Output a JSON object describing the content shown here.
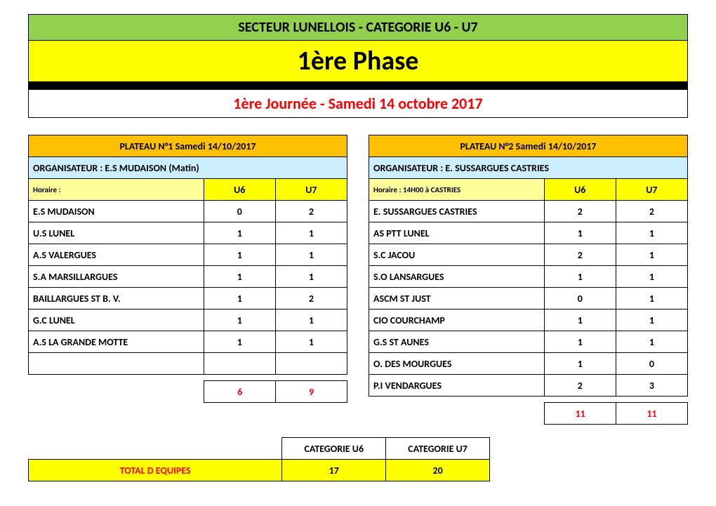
{
  "header": {
    "sector": "SECTEUR LUNELLOIS - CATEGORIE U6 - U7",
    "phase": "1ère Phase",
    "journee": "1ère  Journée - Samedi 14 octobre 2017"
  },
  "colors": {
    "green": "#92d050",
    "yellow": "#ffff00",
    "yellow_soft": "#ffff99",
    "orange": "#ffc000",
    "lightblue": "#cceeff",
    "red": "#ff0000",
    "black": "#000000",
    "white": "#ffffff"
  },
  "plateau1": {
    "title": "PLATEAU N°1  Samedi 14/10/2017",
    "organisateur": "ORGANISATEUR  : E.S MUDAISON (Matin)",
    "horaire": "Horaire :",
    "cols": {
      "u6": "U6",
      "u7": "U7"
    },
    "rows": [
      {
        "team": "E.S MUDAISON",
        "u6": "0",
        "u7": "2"
      },
      {
        "team": "U.S LUNEL",
        "u6": "1",
        "u7": "1"
      },
      {
        "team": "A.S VALERGUES",
        "u6": "1",
        "u7": "1"
      },
      {
        "team": "S.A MARSILLARGUES",
        "u6": "1",
        "u7": "1"
      },
      {
        "team": "BAILLARGUES ST B. V.",
        "u6": "1",
        "u7": "2"
      },
      {
        "team": "G.C LUNEL",
        "u6": "1",
        "u7": "1"
      },
      {
        "team": "A.S LA GRANDE MOTTE",
        "u6": "1",
        "u7": "1"
      },
      {
        "team": "",
        "u6": "",
        "u7": ""
      }
    ],
    "subtotal": {
      "u6": "6",
      "u7": "9"
    }
  },
  "plateau2": {
    "title": "PLATEAU N°2  Samedi 14/10/2017",
    "organisateur": "ORGANISATEUR  : E. SUSSARGUES CASTRIES",
    "horaire": "Horaire : 14H00 à CASTRIES",
    "cols": {
      "u6": "U6",
      "u7": "U7"
    },
    "rows": [
      {
        "team": "E. SUSSARGUES CASTRIES",
        "u6": "2",
        "u7": "2"
      },
      {
        "team": "AS PTT LUNEL",
        "u6": "1",
        "u7": "1"
      },
      {
        "team": "S.C JACOU",
        "u6": "2",
        "u7": "1"
      },
      {
        "team": "S.O LANSARGUES",
        "u6": "1",
        "u7": "1"
      },
      {
        "team": "ASCM ST JUST",
        "u6": "0",
        "u7": "1"
      },
      {
        "team": "CIO COURCHAMP",
        "u6": "1",
        "u7": "1"
      },
      {
        "team": "G.S  ST AUNES",
        "u6": "1",
        "u7": "1"
      },
      {
        "team": "O. DES MOURGUES",
        "u6": "1",
        "u7": "0"
      },
      {
        "team": "P.I VENDARGUES",
        "u6": "2",
        "u7": "3"
      }
    ],
    "subtotal": {
      "u6": "11",
      "u7": "11"
    }
  },
  "totals": {
    "cat_u6": "CATEGORIE U6",
    "cat_u7": "CATEGORIE U7",
    "label": "TOTAL D EQUIPES",
    "u6": "17",
    "u7": "20"
  }
}
